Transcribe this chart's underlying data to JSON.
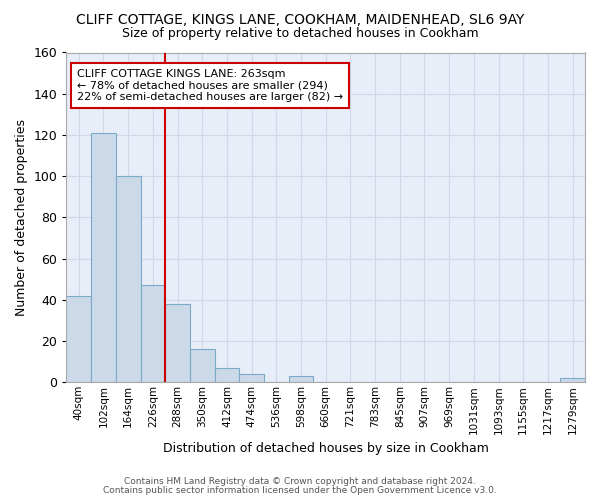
{
  "title": "CLIFF COTTAGE, KINGS LANE, COOKHAM, MAIDENHEAD, SL6 9AY",
  "subtitle": "Size of property relative to detached houses in Cookham",
  "xlabel": "Distribution of detached houses by size in Cookham",
  "ylabel": "Number of detached properties",
  "bin_labels": [
    "40sqm",
    "102sqm",
    "164sqm",
    "226sqm",
    "288sqm",
    "350sqm",
    "412sqm",
    "474sqm",
    "536sqm",
    "598sqm",
    "660sqm",
    "721sqm",
    "783sqm",
    "845sqm",
    "907sqm",
    "969sqm",
    "1031sqm",
    "1093sqm",
    "1155sqm",
    "1217sqm",
    "1279sqm"
  ],
  "bar_heights": [
    42,
    121,
    100,
    47,
    38,
    16,
    7,
    4,
    0,
    3,
    0,
    0,
    0,
    0,
    0,
    0,
    0,
    0,
    0,
    0,
    2
  ],
  "bar_color": "#ccd9e8",
  "bar_edge_color": "#7aaac8",
  "grid_color": "#d0d8e8",
  "background_color": "#e8eef8",
  "red_line_bin_index": 3,
  "red_line_color": "#cc0000",
  "annotation_text": "CLIFF COTTAGE KINGS LANE: 263sqm\n← 78% of detached houses are smaller (294)\n22% of semi-detached houses are larger (82) →",
  "annotation_box_color": "#ffffff",
  "annotation_box_edge": "#cc0000",
  "ylim": [
    0,
    160
  ],
  "yticks": [
    0,
    20,
    40,
    60,
    80,
    100,
    120,
    140,
    160
  ],
  "footer1": "Contains HM Land Registry data © Crown copyright and database right 2024.",
  "footer2": "Contains public sector information licensed under the Open Government Licence v3.0."
}
